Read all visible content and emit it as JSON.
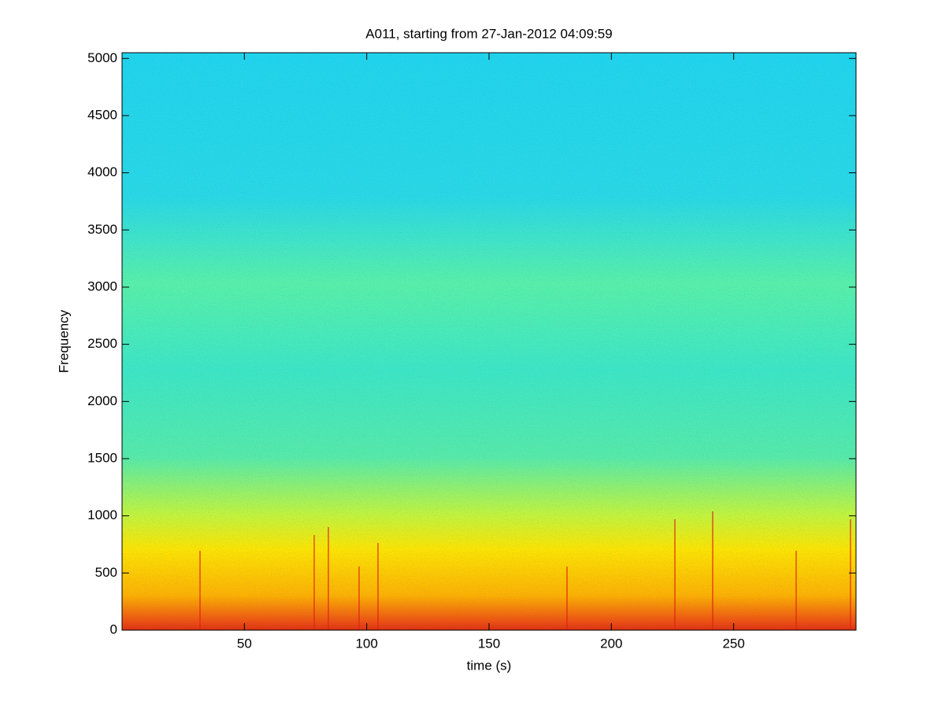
{
  "chart_data": {
    "type": "spectrogram",
    "title": "A011, starting from 27-Jan-2012 04:09:59",
    "xlabel": "time (s)",
    "ylabel": "Frequency",
    "xlim": [
      0,
      300
    ],
    "xticks": [
      50,
      100,
      150,
      200,
      250
    ],
    "ylim": [
      0,
      5050
    ],
    "yticks": [
      0,
      500,
      1000,
      1500,
      2000,
      2500,
      3000,
      3500,
      4000,
      4500,
      5000
    ]
  }
}
